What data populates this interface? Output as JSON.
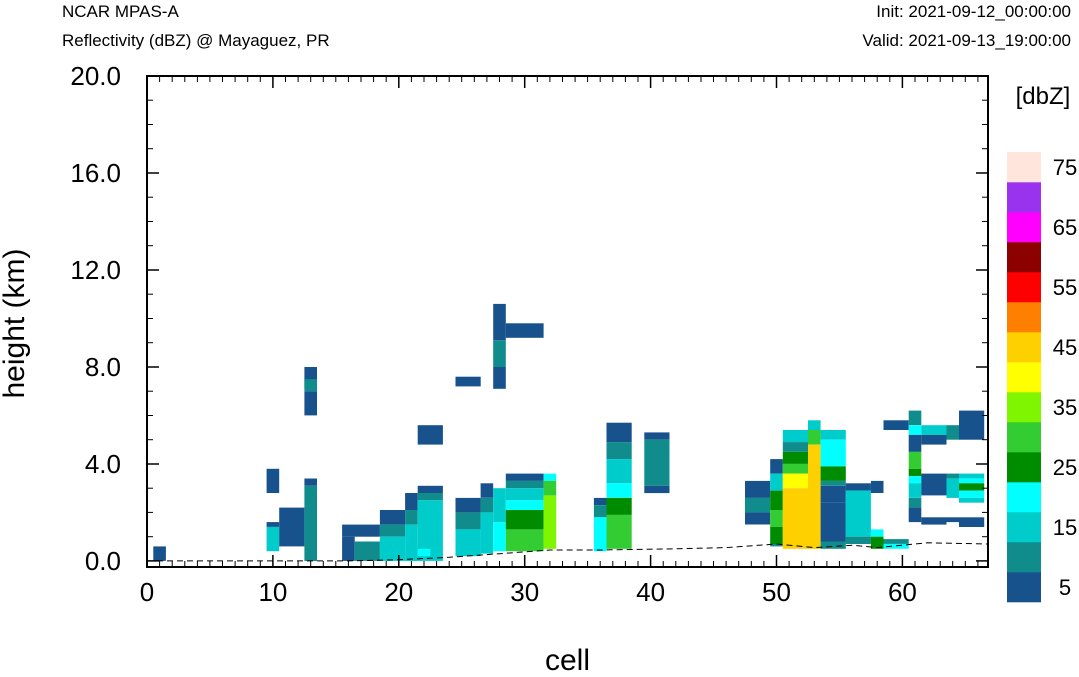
{
  "header": {
    "title_left": "NCAR MPAS-A",
    "subtitle_left": "Reflectivity (dBZ) @ Mayaguez, PR",
    "title_right": "Init: 2021-09-12_00:00:00",
    "subtitle_right": "Valid: 2021-09-13_19:00:00"
  },
  "chart_data": {
    "type": "heatmap",
    "xlabel": "cell",
    "ylabel": "height (km)",
    "xlim": [
      0,
      66.8
    ],
    "ylim": [
      -0.25,
      20.0
    ],
    "xticks": [
      0,
      10,
      20,
      30,
      40,
      50,
      60
    ],
    "yticks": [
      0.0,
      4.0,
      8.0,
      12.0,
      16.0,
      20.0
    ],
    "ytick_labels": [
      "0.0",
      "4.0",
      "8.0",
      "12.0",
      "16.0",
      "20.0"
    ],
    "colorbar": {
      "title": "[dbZ]",
      "levels": [
        5,
        10,
        15,
        20,
        25,
        30,
        35,
        40,
        45,
        50,
        55,
        60,
        65,
        70,
        75
      ],
      "labels": [
        "5",
        "15",
        "25",
        "35",
        "45",
        "55",
        "65",
        "75"
      ],
      "colors": [
        "#17528c",
        "#108c8c",
        "#00cccc",
        "#00ffff",
        "#008c00",
        "#33cc33",
        "#7ff500",
        "#ffff00",
        "#ffd000",
        "#ff8000",
        "#ff0000",
        "#8c0000",
        "#ff00ff",
        "#9933ee",
        "#ffe5dc"
      ]
    },
    "terrain": [
      [
        0,
        0
      ],
      [
        16,
        0
      ],
      [
        20,
        0.05
      ],
      [
        24,
        0.15
      ],
      [
        28,
        0.3
      ],
      [
        32,
        0.45
      ],
      [
        36,
        0.45
      ],
      [
        42,
        0.5
      ],
      [
        46,
        0.55
      ],
      [
        50,
        0.7
      ],
      [
        53,
        0.55
      ],
      [
        56,
        0.65
      ],
      [
        58,
        0.55
      ],
      [
        62,
        0.75
      ],
      [
        66.8,
        0.7
      ]
    ],
    "cells": [
      [
        0.5,
        1.5,
        0,
        0.6,
        5
      ],
      [
        9.5,
        10.5,
        2.8,
        3.8,
        5
      ],
      [
        9.5,
        10.5,
        1.4,
        1.6,
        5
      ],
      [
        9.5,
        10.5,
        0.4,
        1.4,
        15
      ],
      [
        10.5,
        12.5,
        0.6,
        2.2,
        5
      ],
      [
        12.5,
        13.5,
        7.1,
        8.0,
        5
      ],
      [
        12.5,
        13.5,
        6.0,
        7.0,
        5
      ],
      [
        12.5,
        13.5,
        7.0,
        7.5,
        10
      ],
      [
        12.5,
        13.5,
        3.1,
        3.4,
        5
      ],
      [
        12.5,
        13.5,
        0,
        3.1,
        10
      ],
      [
        15.5,
        18.5,
        1.0,
        1.5,
        5
      ],
      [
        15.5,
        16.5,
        0,
        1.0,
        5
      ],
      [
        16.5,
        18.5,
        0,
        0.8,
        10
      ],
      [
        18.5,
        20.5,
        1.5,
        2.1,
        5
      ],
      [
        18.5,
        20.5,
        1.0,
        1.5,
        10
      ],
      [
        18.5,
        20.5,
        0,
        1.0,
        15
      ],
      [
        20.5,
        21.5,
        2.1,
        2.8,
        5
      ],
      [
        20.5,
        21.5,
        1.5,
        2.1,
        10
      ],
      [
        20.5,
        21.5,
        0,
        1.5,
        15
      ],
      [
        21.5,
        23.5,
        2.8,
        3.1,
        5
      ],
      [
        21.5,
        23.5,
        2.5,
        2.8,
        10
      ],
      [
        21.5,
        23.5,
        0,
        2.5,
        15
      ],
      [
        21.5,
        22.5,
        0.2,
        0.5,
        20
      ],
      [
        21.5,
        23.5,
        4.8,
        5.6,
        5
      ],
      [
        24.5,
        26.5,
        7.2,
        7.6,
        5
      ],
      [
        24.5,
        26.5,
        2.0,
        2.6,
        5
      ],
      [
        24.5,
        26.5,
        1.3,
        2.0,
        10
      ],
      [
        24.5,
        26.5,
        0.2,
        1.3,
        15
      ],
      [
        26.5,
        27.5,
        2.6,
        3.2,
        5
      ],
      [
        26.5,
        27.5,
        2.0,
        2.6,
        10
      ],
      [
        26.5,
        27.5,
        0.3,
        2.0,
        15
      ],
      [
        27.5,
        28.5,
        9.1,
        10.6,
        5
      ],
      [
        27.5,
        28.5,
        8.0,
        9.1,
        10
      ],
      [
        27.5,
        28.5,
        7.1,
        8.0,
        5
      ],
      [
        28.5,
        31.5,
        9.2,
        9.8,
        5
      ],
      [
        27.5,
        28.5,
        1.6,
        3.0,
        15
      ],
      [
        27.5,
        28.5,
        0.4,
        1.6,
        20
      ],
      [
        28.5,
        31.5,
        3.3,
        3.6,
        5
      ],
      [
        28.5,
        31.5,
        3.0,
        3.3,
        10
      ],
      [
        28.5,
        31.5,
        2.5,
        3.0,
        15
      ],
      [
        28.5,
        31.5,
        2.1,
        2.5,
        20
      ],
      [
        28.5,
        31.5,
        1.3,
        2.1,
        25
      ],
      [
        28.5,
        31.5,
        0.4,
        1.3,
        30
      ],
      [
        31.5,
        32.5,
        3.3,
        3.6,
        20
      ],
      [
        31.5,
        32.5,
        2.7,
        3.3,
        30
      ],
      [
        31.5,
        32.5,
        0.5,
        2.7,
        35
      ],
      [
        35.5,
        36.5,
        2.3,
        2.6,
        5
      ],
      [
        35.5,
        36.5,
        1.8,
        2.3,
        10
      ],
      [
        35.5,
        36.5,
        0.4,
        1.8,
        20
      ],
      [
        36.5,
        38.5,
        4.9,
        5.7,
        5
      ],
      [
        36.5,
        38.5,
        4.2,
        4.9,
        10
      ],
      [
        36.5,
        38.5,
        3.2,
        4.2,
        15
      ],
      [
        36.5,
        38.5,
        2.6,
        3.2,
        20
      ],
      [
        36.5,
        38.5,
        1.9,
        2.6,
        25
      ],
      [
        36.5,
        38.5,
        0.5,
        1.9,
        30
      ],
      [
        39.5,
        41.5,
        5.0,
        5.3,
        5
      ],
      [
        39.5,
        41.5,
        3.1,
        5.0,
        10
      ],
      [
        39.5,
        41.5,
        2.8,
        3.1,
        5
      ],
      [
        47.5,
        49.5,
        2.6,
        3.3,
        5
      ],
      [
        47.5,
        49.5,
        2.0,
        2.6,
        10
      ],
      [
        47.5,
        49.5,
        1.5,
        2.0,
        5
      ],
      [
        49.5,
        50.5,
        3.6,
        4.2,
        5
      ],
      [
        49.5,
        50.5,
        2.9,
        3.6,
        15
      ],
      [
        49.5,
        50.5,
        2.1,
        2.9,
        25
      ],
      [
        49.5,
        50.5,
        1.4,
        2.1,
        30
      ],
      [
        49.5,
        50.5,
        0.7,
        1.4,
        25
      ],
      [
        49.5,
        50.5,
        0.6,
        0.7,
        10
      ],
      [
        50.5,
        52.5,
        4.9,
        5.4,
        15
      ],
      [
        50.5,
        52.5,
        4.5,
        4.9,
        10
      ],
      [
        50.5,
        52.5,
        4.0,
        4.5,
        25
      ],
      [
        50.5,
        52.5,
        3.6,
        4.0,
        30
      ],
      [
        50.5,
        52.5,
        3.0,
        3.6,
        40
      ],
      [
        50.5,
        52.5,
        0.5,
        3.0,
        45
      ],
      [
        52.5,
        53.5,
        5.4,
        5.8,
        15
      ],
      [
        52.5,
        53.5,
        4.8,
        5.4,
        30
      ],
      [
        52.5,
        53.5,
        0.5,
        4.8,
        45
      ],
      [
        53.5,
        55.5,
        5.0,
        5.4,
        15
      ],
      [
        53.5,
        55.5,
        3.9,
        5.0,
        20
      ],
      [
        53.5,
        55.5,
        3.3,
        3.9,
        25
      ],
      [
        53.5,
        55.5,
        3.1,
        3.3,
        10
      ],
      [
        53.5,
        55.5,
        2.8,
        3.1,
        5
      ],
      [
        53.5,
        55.5,
        2.4,
        2.8,
        5
      ],
      [
        53.5,
        55.5,
        0.8,
        2.4,
        5
      ],
      [
        53.5,
        55.5,
        0.5,
        0.8,
        10
      ],
      [
        55.5,
        57.5,
        2.9,
        3.2,
        5
      ],
      [
        55.5,
        57.5,
        1.0,
        2.9,
        15
      ],
      [
        55.5,
        57.5,
        0.7,
        1.0,
        10
      ],
      [
        57.5,
        58.5,
        2.8,
        3.3,
        5
      ],
      [
        57.5,
        58.5,
        1.0,
        1.3,
        20
      ],
      [
        57.5,
        58.5,
        0.5,
        1.0,
        25
      ],
      [
        58.5,
        60.5,
        0.7,
        0.9,
        10
      ],
      [
        58.5,
        60.5,
        0.5,
        0.7,
        20
      ],
      [
        58.5,
        60.5,
        5.4,
        5.8,
        5
      ],
      [
        60.5,
        61.5,
        5.6,
        6.2,
        10
      ],
      [
        60.5,
        61.5,
        5.2,
        5.6,
        20
      ],
      [
        60.5,
        61.5,
        4.5,
        5.2,
        5
      ],
      [
        60.5,
        61.5,
        3.8,
        4.5,
        30
      ],
      [
        60.5,
        61.5,
        3.5,
        3.8,
        25
      ],
      [
        60.5,
        61.5,
        3.2,
        3.5,
        20
      ],
      [
        60.5,
        61.5,
        2.6,
        3.2,
        15
      ],
      [
        60.5,
        61.5,
        2.2,
        2.6,
        10
      ],
      [
        60.5,
        61.5,
        1.6,
        2.2,
        5
      ],
      [
        61.5,
        63.5,
        5.2,
        5.6,
        15
      ],
      [
        61.5,
        63.5,
        4.8,
        5.2,
        5
      ],
      [
        61.5,
        63.5,
        2.7,
        3.6,
        5
      ],
      [
        61.5,
        63.5,
        1.5,
        1.8,
        5
      ],
      [
        63.5,
        64.5,
        5.0,
        5.6,
        10
      ],
      [
        63.5,
        64.5,
        3.4,
        3.6,
        10
      ],
      [
        63.5,
        64.5,
        2.6,
        3.4,
        15
      ],
      [
        63.5,
        64.5,
        1.6,
        1.8,
        5
      ],
      [
        64.5,
        66.5,
        5.0,
        6.2,
        5
      ],
      [
        64.5,
        66.5,
        3.4,
        3.6,
        15
      ],
      [
        64.5,
        66.5,
        3.2,
        3.4,
        20
      ],
      [
        64.5,
        66.5,
        2.9,
        3.2,
        25
      ],
      [
        64.5,
        66.5,
        2.6,
        2.9,
        20
      ],
      [
        64.5,
        66.5,
        2.4,
        2.6,
        15
      ],
      [
        64.5,
        66.5,
        1.4,
        1.8,
        5
      ]
    ]
  }
}
